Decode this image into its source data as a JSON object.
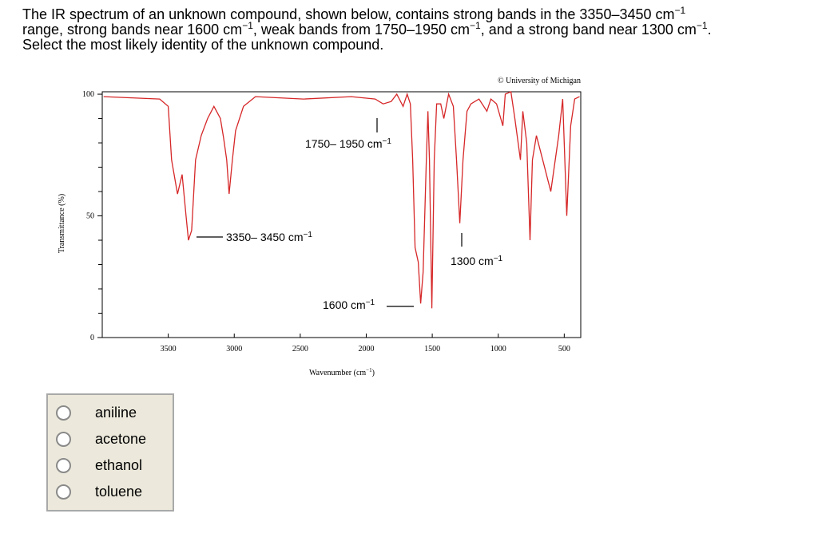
{
  "question": [
    [
      "The IR spectrum of an unknown compound, shown below, contains strong bands in the 3350–3450 cm",
      "−1"
    ],
    [
      "range, strong bands near 1600 cm",
      "−1",
      ", weak bands from 1750–1950 cm",
      "−1",
      ", and a strong band near 1300 cm",
      "−1",
      "."
    ],
    [
      "Select the most likely identity of the unknown compound."
    ]
  ],
  "chart_data": {
    "type": "line",
    "credit": "© University of Michigan",
    "y_label": "Transmittance (%)",
    "x_label": [
      "Wavenumber (cm",
      "−1",
      ")"
    ],
    "xlim": [
      4000,
      375
    ],
    "ylim": [
      0,
      101
    ],
    "xticks": [
      3500,
      3000,
      2500,
      2000,
      1500,
      1000,
      500
    ],
    "yticks": [
      0,
      50,
      100
    ],
    "yminor": [
      10,
      20,
      30,
      40,
      60,
      70,
      80,
      90
    ],
    "color": "#d62728",
    "x": [
      3990,
      3565,
      3500,
      3475,
      3430,
      3395,
      3365,
      3347,
      3323,
      3293,
      3250,
      3202,
      3154,
      3105,
      3081,
      3057,
      3039,
      3014,
      2990,
      2930,
      2839,
      2476,
      2114,
      1932,
      1872,
      1811,
      1769,
      1721,
      1690,
      1666,
      1648,
      1630,
      1606,
      1588,
      1569,
      1545,
      1533,
      1521,
      1503,
      1485,
      1467,
      1436,
      1412,
      1376,
      1340,
      1316,
      1291,
      1267,
      1237,
      1207,
      1146,
      1086,
      1056,
      1013,
      965,
      947,
      904,
      874,
      832,
      814,
      784,
      759,
      741,
      711,
      663,
      602,
      542,
      512,
      481,
      451,
      421,
      384
    ],
    "y": [
      99,
      98,
      95,
      73,
      59,
      67,
      50,
      40,
      44,
      73,
      83,
      90,
      95,
      90,
      82,
      73,
      59,
      73,
      85,
      95,
      99,
      98,
      99,
      98,
      96,
      97,
      100,
      95,
      100,
      96,
      73,
      37,
      31,
      14,
      27,
      73,
      93,
      73,
      12,
      73,
      96,
      96,
      90,
      100,
      95,
      73,
      47,
      73,
      93,
      96,
      98,
      93,
      98,
      96,
      87,
      100,
      101,
      90,
      73,
      93,
      80,
      40,
      73,
      83,
      73,
      60,
      83,
      98,
      50,
      87,
      98,
      99
    ],
    "annotations": [
      [
        "1750– 1950 cm",
        "−1"
      ],
      [
        "3350– 3450 cm",
        "−1"
      ],
      [
        "1600 cm",
        "−1"
      ],
      [
        "1300 cm",
        "−1"
      ]
    ]
  },
  "options": [
    "aniline",
    "acetone",
    "ethanol",
    "toluene"
  ]
}
